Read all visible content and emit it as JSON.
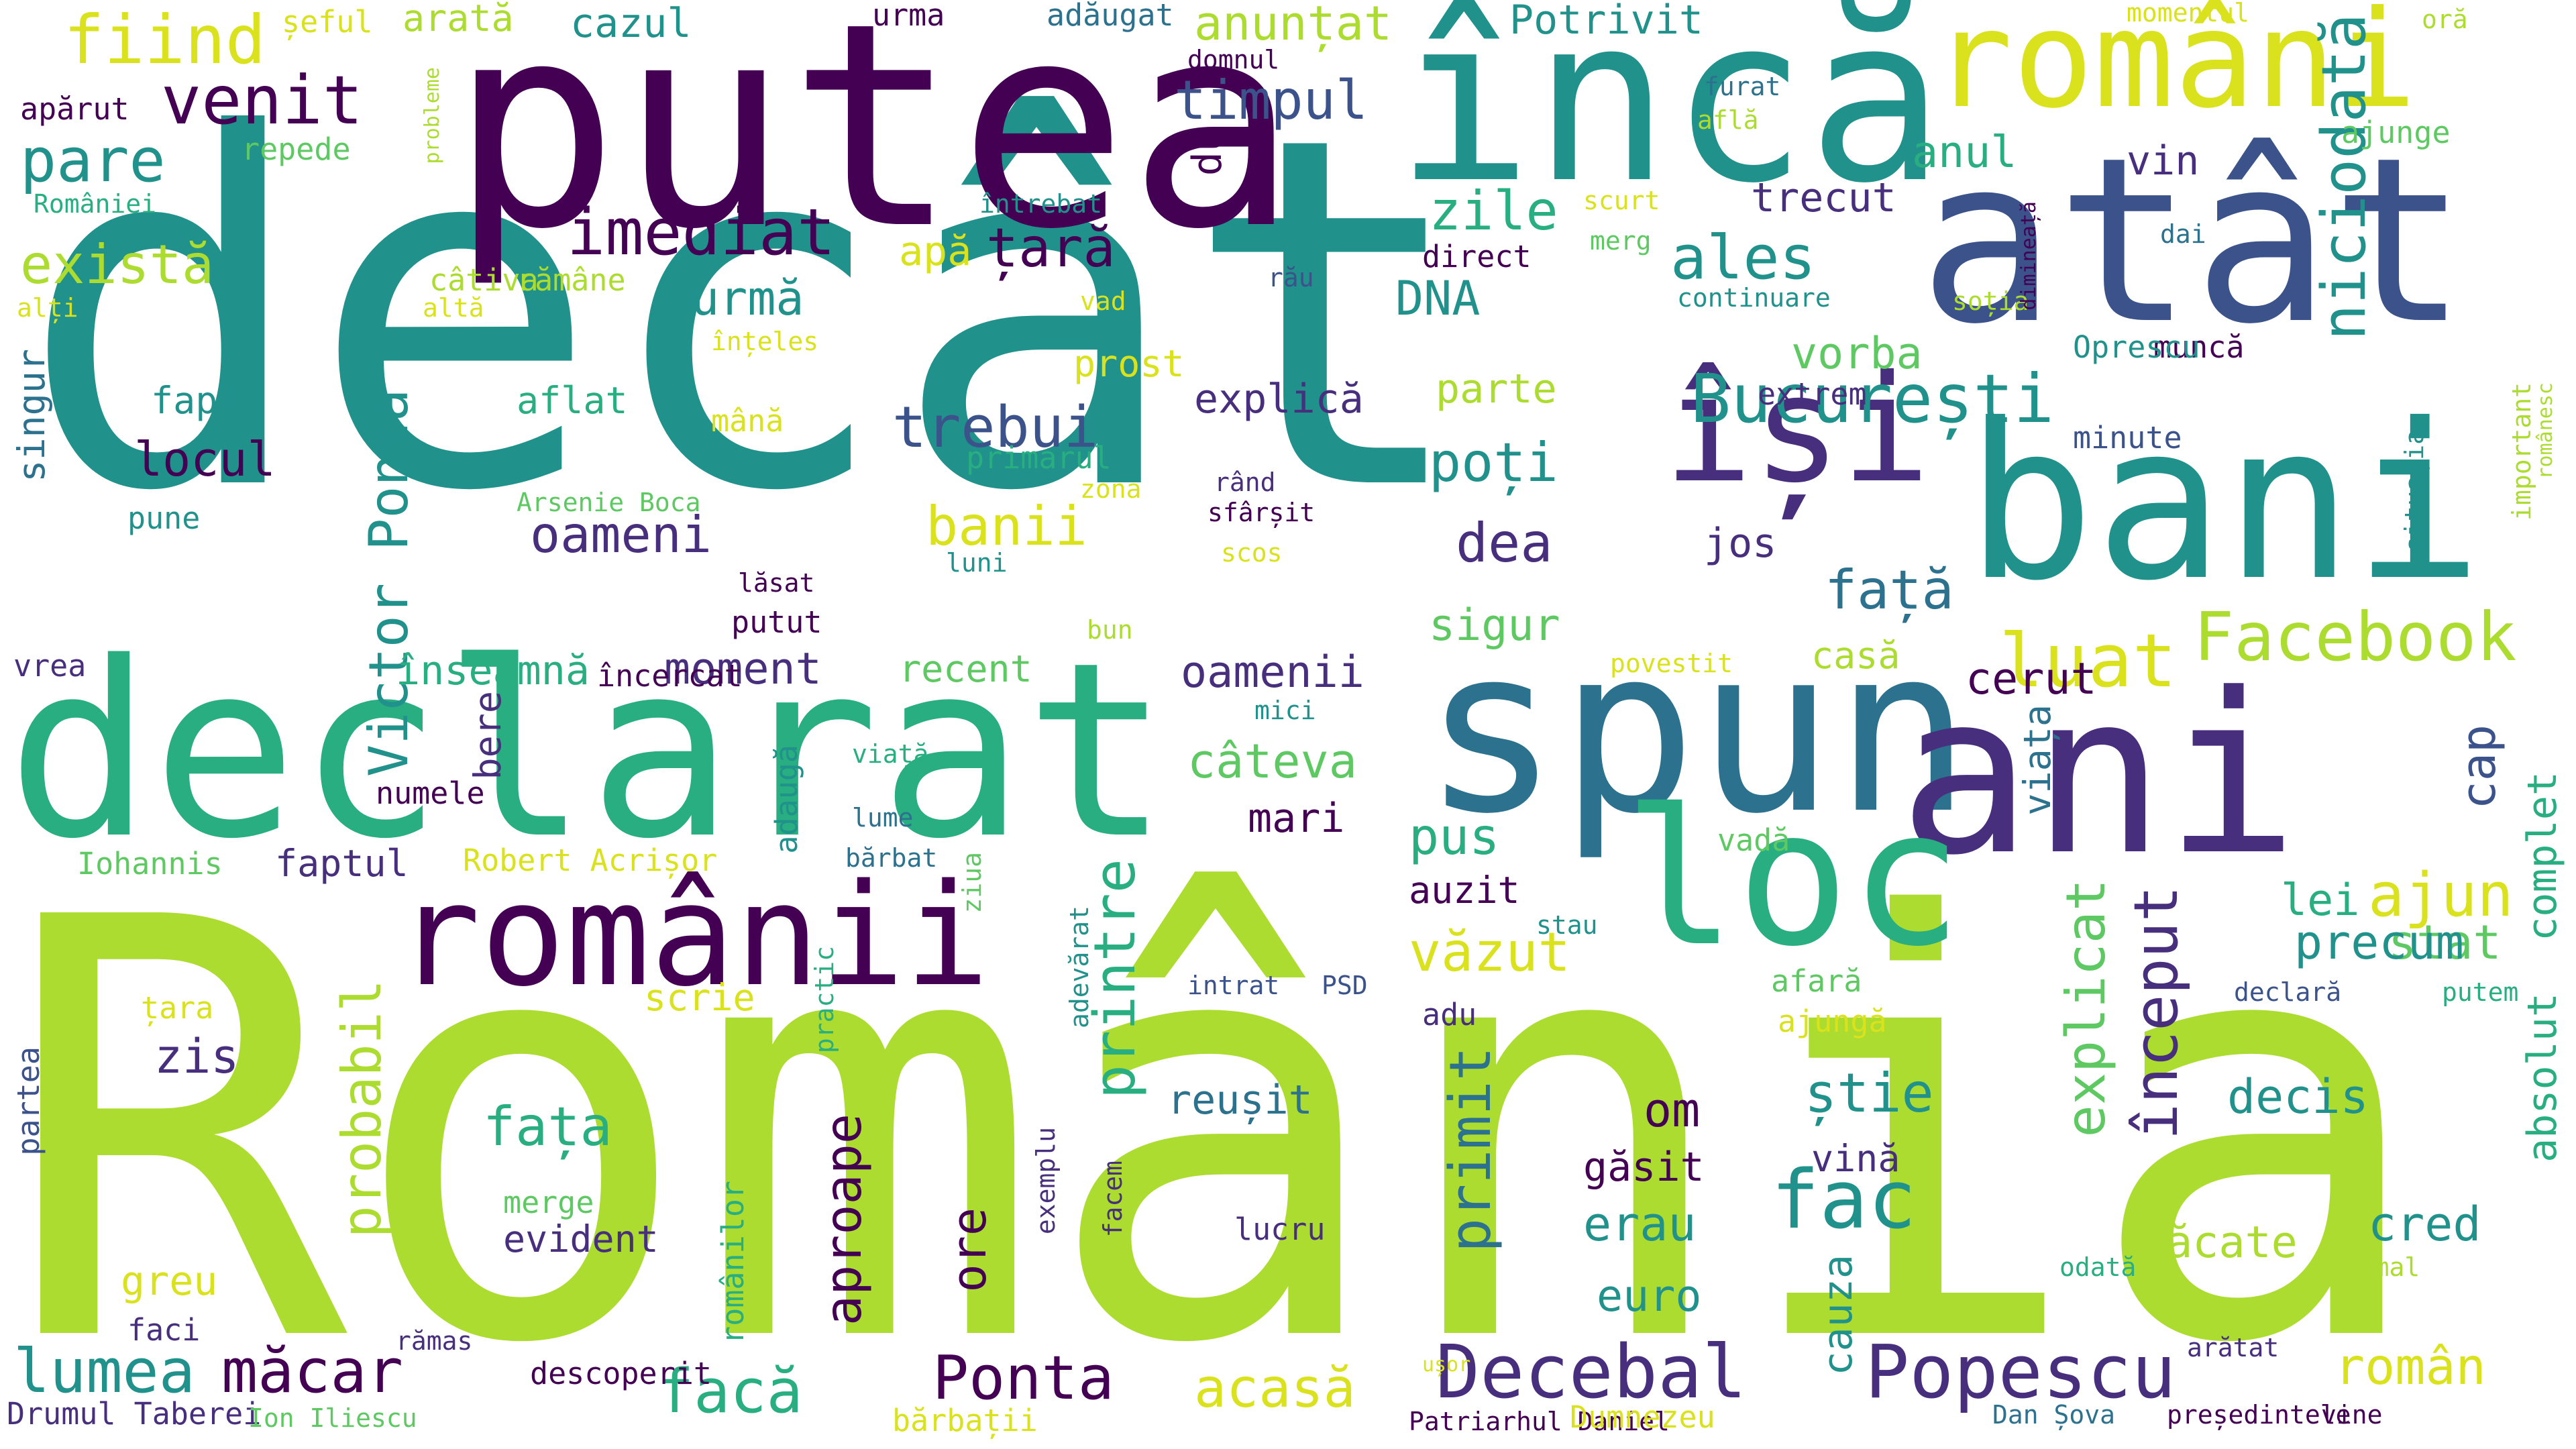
{
  "words": [
    "decât",
    "România",
    "putea",
    "încă",
    "declarat",
    "spun",
    "atât",
    "ani",
    "bani",
    "loc",
    "românii",
    "români",
    "își",
    "București",
    "Facebook",
    "Decebal",
    "Popescu",
    "Ponta",
    "Victor Ponta",
    "imediat",
    "venit",
    "fiind",
    "pare",
    "există",
    "trebui",
    "oameni",
    "banii",
    "țară",
    "timpul",
    "ales",
    "zile",
    "niciodată",
    "început",
    "explicat",
    "primit",
    "probabil",
    "printre",
    "aproape",
    "fac",
    "luat",
    "lumea",
    "măcar",
    "facă",
    "acasă",
    "văzut",
    "vorba",
    "poți",
    "dea",
    "sigur",
    "pus",
    "câteva",
    "oamenii",
    "moment",
    "înseamnă",
    "cazul",
    "arată",
    "șeful",
    "anunțat",
    "adăugat",
    "Potrivit",
    "momentul",
    "oră",
    "urma",
    "DNA",
    "du",
    "apă",
    "explică",
    "parte",
    "jos",
    "față",
    "casă",
    "cerut",
    "viața",
    "cap",
    "complet",
    "absolut",
    "stat",
    "precum",
    "lei",
    "ajun",
    "decis",
    "știe",
    "om",
    "fața",
    "zis",
    "greu",
    "erau",
    "euro",
    "cred",
    "păcate",
    "român",
    "cauza",
    "ore",
    "reușit",
    "găsit",
    "vină",
    "mari",
    "auzit",
    "recent",
    "urmă",
    "anul",
    "vin",
    "trecut",
    "ajunge",
    "dai",
    "direct",
    "merg",
    "rău",
    "vad",
    "soția",
    "muncă",
    "Oprescu",
    "extrem",
    "minute",
    "situația",
    "important",
    "românesc",
    "continuare",
    "dimineață",
    "scurt",
    "furat",
    "află",
    "repede",
    "întrebat",
    "domnul",
    "probleme",
    "apărut",
    "României",
    "alți",
    "altă",
    "câtiva",
    "rămâne",
    "înțeles",
    "prost",
    "primarul",
    "aflat",
    "mână",
    "Arsenie Boca",
    "zona",
    "rând",
    "fapt",
    "locul",
    "singur",
    "pune",
    "sfârșit",
    "scos",
    "luni",
    "lăsat",
    "putut",
    "bun",
    "încercat",
    "povestit",
    "mici",
    "vrea",
    "bere",
    "numele",
    "adaugă",
    "viață",
    "lume",
    "bărbat",
    "ziua",
    "adevărat",
    "vadă",
    "stau",
    "adu",
    "practic",
    "intrat",
    "PSD",
    "scrie",
    "țara",
    "faptul",
    "Iohannis",
    "Robert Acrișor",
    "partea",
    "merge",
    "evident",
    "românilor",
    "exemplu",
    "facem",
    "lucru",
    "afară",
    "ajungă",
    "odată",
    "normal",
    "declară",
    "putem",
    "ușor",
    "arătat",
    "faci",
    "rămas",
    "descoperit",
    "Drumul Taberei",
    "Ion Iliescu",
    "bărbații",
    "Patriarhul Daniel",
    "Dumnezeu",
    "Dan Șova",
    "președintele",
    "vine"
  ],
  "colors": {
    "c1": "#440154",
    "c2": "#472f7d",
    "c3": "#3b528b",
    "c4": "#2c728e",
    "c5": "#21918c",
    "c6": "#28ae80",
    "c7": "#5ec962",
    "c8": "#addc30",
    "c9": "#d9e21c",
    "c10": "#fde725"
  }
}
